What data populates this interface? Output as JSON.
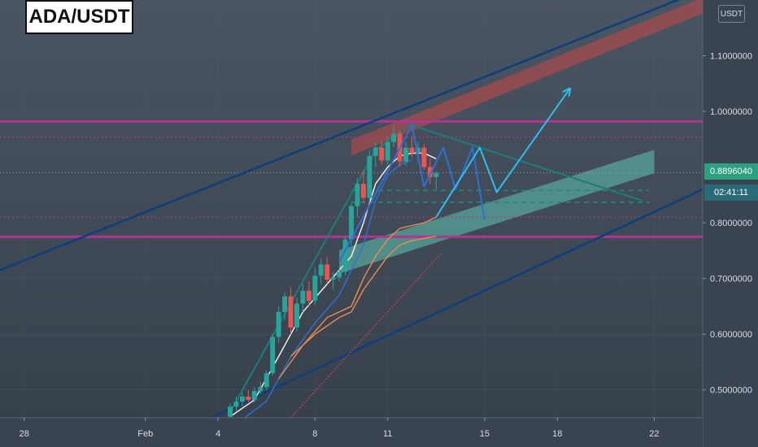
{
  "header": {
    "symbol": "ADA/USDT",
    "currency": "USDT"
  },
  "readouts": {
    "last_price": "0.8896040",
    "countdown": "02:41:11"
  },
  "colors": {
    "background": "#3a4450",
    "up": "#26a69a",
    "down": "#ef5350",
    "ma_fast": "#f5f5f0",
    "ma_slow": "#f08a4b",
    "ma_blue": "#2f6fd8",
    "channel": "#0d3f7a",
    "level": "#b0358f",
    "arrow": "#2cc0f0",
    "support_zone": "#5fc4b4",
    "resistance_zone": "#b34a4a"
  },
  "chart_data": {
    "type": "candlestick",
    "price_axis": {
      "ticks": [
        "1.1000000",
        "1.0000000",
        "0.8000000",
        "0.7000000",
        "0.6000000",
        "0.5000000"
      ],
      "tick_values": [
        1.1,
        1.0,
        0.8,
        0.7,
        0.6,
        0.5
      ],
      "range": [
        0.45,
        1.2
      ]
    },
    "time_axis": {
      "ticks": [
        "28",
        "Feb",
        "4",
        "8",
        "11",
        "15",
        "18",
        "22"
      ],
      "tick_days": [
        -4,
        1,
        4,
        8,
        11,
        15,
        18,
        22
      ],
      "range": [
        -5,
        24
      ]
    },
    "candles": [
      {
        "t": 4.5,
        "o": 0.452,
        "h": 0.476,
        "l": 0.448,
        "c": 0.47
      },
      {
        "t": 4.75,
        "o": 0.47,
        "h": 0.488,
        "l": 0.462,
        "c": 0.479
      },
      {
        "t": 5.0,
        "o": 0.479,
        "h": 0.495,
        "l": 0.47,
        "c": 0.488
      },
      {
        "t": 5.25,
        "o": 0.488,
        "h": 0.5,
        "l": 0.478,
        "c": 0.482
      },
      {
        "t": 5.5,
        "o": 0.482,
        "h": 0.505,
        "l": 0.478,
        "c": 0.498
      },
      {
        "t": 5.75,
        "o": 0.498,
        "h": 0.515,
        "l": 0.492,
        "c": 0.505
      },
      {
        "t": 6.0,
        "o": 0.505,
        "h": 0.535,
        "l": 0.5,
        "c": 0.53
      },
      {
        "t": 6.25,
        "o": 0.53,
        "h": 0.6,
        "l": 0.525,
        "c": 0.595
      },
      {
        "t": 6.5,
        "o": 0.595,
        "h": 0.65,
        "l": 0.585,
        "c": 0.64
      },
      {
        "t": 6.75,
        "o": 0.64,
        "h": 0.675,
        "l": 0.625,
        "c": 0.668
      },
      {
        "t": 7.0,
        "o": 0.668,
        "h": 0.685,
        "l": 0.6,
        "c": 0.612
      },
      {
        "t": 7.25,
        "o": 0.612,
        "h": 0.665,
        "l": 0.605,
        "c": 0.655
      },
      {
        "t": 7.5,
        "o": 0.655,
        "h": 0.69,
        "l": 0.64,
        "c": 0.678
      },
      {
        "t": 7.75,
        "o": 0.678,
        "h": 0.695,
        "l": 0.65,
        "c": 0.66
      },
      {
        "t": 8.0,
        "o": 0.66,
        "h": 0.72,
        "l": 0.652,
        "c": 0.705
      },
      {
        "t": 8.25,
        "o": 0.705,
        "h": 0.735,
        "l": 0.69,
        "c": 0.725
      },
      {
        "t": 8.5,
        "o": 0.725,
        "h": 0.738,
        "l": 0.69,
        "c": 0.698
      },
      {
        "t": 8.75,
        "o": 0.698,
        "h": 0.712,
        "l": 0.68,
        "c": 0.702
      },
      {
        "t": 9.0,
        "o": 0.702,
        "h": 0.72,
        "l": 0.695,
        "c": 0.712
      },
      {
        "t": 9.25,
        "o": 0.712,
        "h": 0.775,
        "l": 0.705,
        "c": 0.77
      },
      {
        "t": 9.5,
        "o": 0.77,
        "h": 0.835,
        "l": 0.76,
        "c": 0.83
      },
      {
        "t": 9.75,
        "o": 0.83,
        "h": 0.88,
        "l": 0.81,
        "c": 0.87
      },
      {
        "t": 10.0,
        "o": 0.87,
        "h": 0.895,
        "l": 0.835,
        "c": 0.845
      },
      {
        "t": 10.25,
        "o": 0.845,
        "h": 0.93,
        "l": 0.84,
        "c": 0.92
      },
      {
        "t": 10.5,
        "o": 0.92,
        "h": 0.945,
        "l": 0.9,
        "c": 0.935
      },
      {
        "t": 10.75,
        "o": 0.935,
        "h": 0.948,
        "l": 0.905,
        "c": 0.912
      },
      {
        "t": 11.0,
        "o": 0.912,
        "h": 0.955,
        "l": 0.905,
        "c": 0.945
      },
      {
        "t": 11.25,
        "o": 0.945,
        "h": 0.975,
        "l": 0.935,
        "c": 0.96
      },
      {
        "t": 11.5,
        "o": 0.96,
        "h": 0.968,
        "l": 0.9,
        "c": 0.91
      },
      {
        "t": 11.75,
        "o": 0.91,
        "h": 0.945,
        "l": 0.902,
        "c": 0.935
      },
      {
        "t": 12.0,
        "o": 0.935,
        "h": 0.955,
        "l": 0.918,
        "c": 0.925
      },
      {
        "t": 12.25,
        "o": 0.925,
        "h": 0.945,
        "l": 0.91,
        "c": 0.935
      },
      {
        "t": 12.5,
        "o": 0.935,
        "h": 0.942,
        "l": 0.895,
        "c": 0.9
      },
      {
        "t": 12.75,
        "o": 0.9,
        "h": 0.915,
        "l": 0.87,
        "c": 0.882
      },
      {
        "t": 13.0,
        "o": 0.882,
        "h": 0.893,
        "l": 0.86,
        "c": 0.8896
      }
    ],
    "moving_averages": [
      {
        "color": "#f5f5f0",
        "points": [
          [
            4.5,
            0.452
          ],
          [
            5.5,
            0.482
          ],
          [
            6.5,
            0.56
          ],
          [
            7.5,
            0.64
          ],
          [
            8.5,
            0.69
          ],
          [
            9.5,
            0.74
          ],
          [
            10.0,
            0.8
          ],
          [
            10.5,
            0.87
          ],
          [
            11.0,
            0.9
          ],
          [
            11.5,
            0.92
          ],
          [
            12.0,
            0.925
          ],
          [
            12.5,
            0.925
          ],
          [
            13.0,
            0.915
          ]
        ]
      },
      {
        "color": "#2f6fd8",
        "points": [
          [
            4.8,
            0.44
          ],
          [
            6.0,
            0.48
          ],
          [
            7.0,
            0.56
          ],
          [
            8.0,
            0.62
          ],
          [
            9.0,
            0.67
          ],
          [
            10.0,
            0.76
          ],
          [
            10.5,
            0.84
          ],
          [
            11.0,
            0.885
          ],
          [
            11.5,
            0.905
          ],
          [
            12.0,
            0.912
          ]
        ]
      },
      {
        "color": "#f08a4b",
        "points": [
          [
            6.5,
            0.52
          ],
          [
            7.5,
            0.58
          ],
          [
            8.5,
            0.63
          ],
          [
            9.5,
            0.65
          ],
          [
            10.0,
            0.7
          ],
          [
            10.5,
            0.74
          ],
          [
            11.0,
            0.77
          ],
          [
            11.5,
            0.79
          ],
          [
            12.0,
            0.795
          ],
          [
            12.5,
            0.8
          ],
          [
            13.0,
            0.81
          ]
        ]
      },
      {
        "color": "#f08a4b",
        "points": [
          [
            7.0,
            0.56
          ],
          [
            8.0,
            0.6
          ],
          [
            9.0,
            0.63
          ],
          [
            9.5,
            0.64
          ],
          [
            10.0,
            0.68
          ],
          [
            10.5,
            0.71
          ],
          [
            11.0,
            0.74
          ],
          [
            11.5,
            0.76
          ],
          [
            12.0,
            0.768
          ],
          [
            12.5,
            0.772
          ],
          [
            13.0,
            0.776
          ]
        ]
      }
    ],
    "horizontal_levels": [
      {
        "value": 0.982,
        "style": "solid"
      },
      {
        "value": 0.954,
        "style": "dotted"
      },
      {
        "value": 0.8896,
        "style": "dotted-gray"
      },
      {
        "value": 0.858,
        "style": "dashed-teal"
      },
      {
        "value": 0.837,
        "style": "dashed-teal"
      },
      {
        "value": 0.81,
        "style": "dotted"
      },
      {
        "value": 0.775,
        "style": "solid"
      }
    ],
    "trendlines": [
      {
        "kind": "channel",
        "from": [
          -5,
          0.715
        ],
        "to": [
          24,
          1.218
        ]
      },
      {
        "kind": "channel",
        "from": [
          3.7,
          0.45
        ],
        "to": [
          24,
          0.86
        ]
      },
      {
        "kind": "triangle",
        "from": [
          12.0,
          0.975
        ],
        "to": [
          21.5,
          0.84
        ]
      },
      {
        "kind": "triangle",
        "from": [
          4.5,
          0.46
        ],
        "to": [
          10.5,
          0.93
        ]
      },
      {
        "kind": "triangle",
        "from": [
          10.5,
          0.93
        ],
        "to": [
          12.0,
          0.978
        ]
      },
      {
        "kind": "dotted-red",
        "from": [
          7.0,
          0.45
        ],
        "to": [
          13.2,
          0.745
        ]
      }
    ],
    "zones": [
      {
        "kind": "resistance",
        "from": [
          9.5,
          0.935
        ],
        "to": [
          24,
          1.19
        ],
        "width": 0.028
      },
      {
        "kind": "support",
        "from": [
          9.0,
          0.73
        ],
        "to": [
          22.0,
          0.91
        ],
        "width": 0.042
      }
    ],
    "projections": [
      {
        "color": "#2f6fd8",
        "points": [
          [
            9.0,
            0.73
          ],
          [
            12.0,
            0.975
          ],
          [
            12.5,
            0.865
          ],
          [
            13.3,
            0.935
          ],
          [
            13.8,
            0.86
          ],
          [
            14.5,
            0.935
          ],
          [
            15.0,
            0.805
          ]
        ]
      },
      {
        "color": "#2cc0f0",
        "points": [
          [
            13.0,
            0.81
          ],
          [
            14.8,
            0.935
          ],
          [
            15.5,
            0.855
          ],
          [
            18.5,
            1.04
          ]
        ]
      }
    ]
  }
}
